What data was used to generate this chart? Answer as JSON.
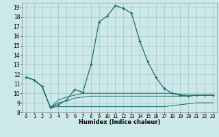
{
  "title": "",
  "xlabel": "Humidex (Indice chaleur)",
  "bg_color": "#cce8e8",
  "grid_color": "#aacccc",
  "line_color": "#1a6b6b",
  "xlim": [
    -0.5,
    23.5
  ],
  "ylim": [
    8,
    19.5
  ],
  "xticks": [
    0,
    1,
    2,
    3,
    4,
    5,
    6,
    7,
    8,
    9,
    10,
    11,
    12,
    13,
    14,
    15,
    16,
    17,
    18,
    19,
    20,
    21,
    22,
    23
  ],
  "yticks": [
    8,
    9,
    10,
    11,
    12,
    13,
    14,
    15,
    16,
    17,
    18,
    19
  ],
  "series0": {
    "x": [
      0,
      1,
      2,
      3,
      4,
      5,
      6,
      7,
      8,
      9,
      10,
      11,
      12,
      13,
      14,
      15,
      16,
      17,
      18,
      19,
      20,
      21,
      22,
      23
    ],
    "y": [
      11.7,
      11.4,
      10.7,
      8.5,
      8.8,
      9.3,
      10.4,
      10.1,
      13.0,
      17.5,
      18.1,
      19.2,
      18.9,
      18.4,
      15.5,
      13.3,
      11.7,
      10.5,
      10.0,
      9.8,
      9.7,
      9.8,
      9.8,
      9.8
    ]
  },
  "series1": {
    "x": [
      0,
      1,
      2,
      3,
      4,
      5,
      6,
      7,
      8,
      9,
      10,
      11,
      12,
      13,
      14,
      15,
      16,
      17,
      18,
      19,
      20,
      21,
      22,
      23
    ],
    "y": [
      11.7,
      11.4,
      10.7,
      8.5,
      8.6,
      8.6,
      8.6,
      8.6,
      8.6,
      8.6,
      8.6,
      8.6,
      8.6,
      8.6,
      8.6,
      8.6,
      8.6,
      8.6,
      8.7,
      8.8,
      8.9,
      9.0,
      9.0,
      9.0
    ]
  },
  "series2": {
    "x": [
      0,
      1,
      2,
      3,
      4,
      5,
      6,
      7,
      8,
      9,
      10,
      11,
      12,
      13,
      14,
      15,
      16,
      17,
      18,
      19,
      20,
      21,
      22,
      23
    ],
    "y": [
      11.7,
      11.4,
      10.7,
      8.5,
      9.3,
      9.6,
      9.8,
      10.0,
      10.0,
      10.0,
      10.0,
      10.0,
      10.0,
      10.0,
      10.0,
      10.0,
      10.0,
      10.0,
      10.0,
      9.9,
      9.8,
      9.8,
      9.8,
      9.8
    ]
  },
  "series3": {
    "x": [
      0,
      1,
      2,
      3,
      4,
      5,
      6,
      7,
      8,
      9,
      10,
      11,
      12,
      13,
      14,
      15,
      16,
      17,
      18,
      19,
      20,
      21,
      22,
      23
    ],
    "y": [
      11.7,
      11.4,
      10.7,
      8.5,
      9.0,
      9.2,
      9.5,
      9.6,
      9.7,
      9.7,
      9.7,
      9.7,
      9.7,
      9.7,
      9.7,
      9.7,
      9.7,
      9.7,
      9.7,
      9.7,
      9.7,
      9.8,
      9.8,
      9.8
    ]
  }
}
